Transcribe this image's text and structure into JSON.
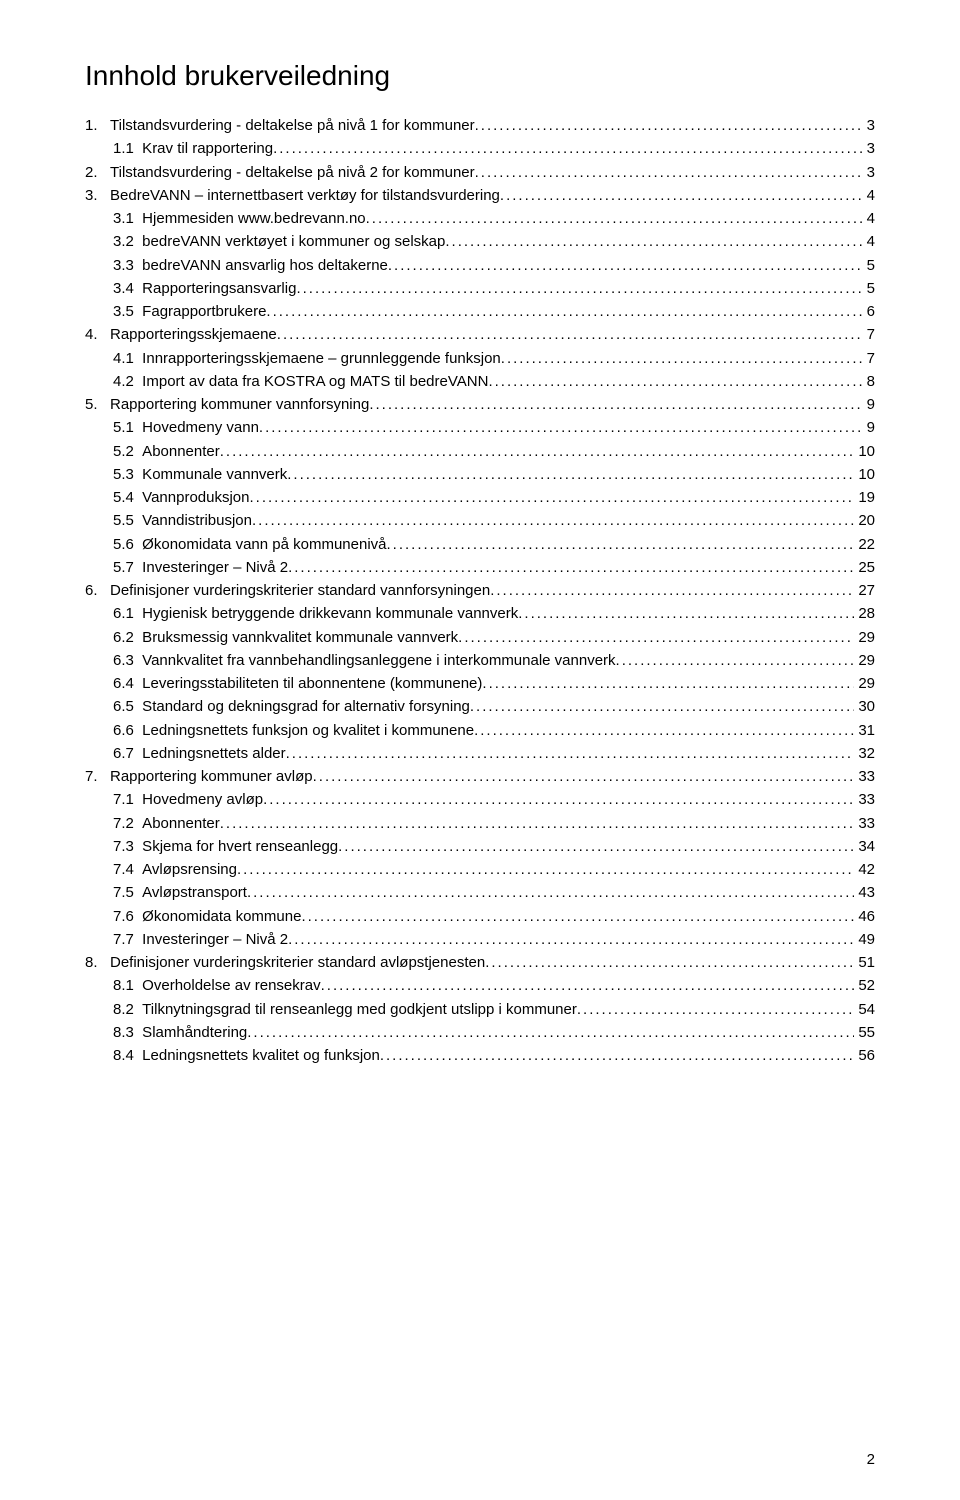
{
  "title": "Innhold brukerveiledning",
  "page_number": "2",
  "toc": [
    {
      "lvl": 0,
      "no": "1.",
      "txt": "Tilstandsvurdering - deltakelse på nivå 1 for kommuner",
      "pg": "3"
    },
    {
      "lvl": 1,
      "no": "1.1",
      "txt": "Krav til rapportering",
      "pg": "3"
    },
    {
      "lvl": 0,
      "no": "2.",
      "txt": "Tilstandsvurdering - deltakelse på nivå 2 for kommuner",
      "pg": "3"
    },
    {
      "lvl": 0,
      "no": "3.",
      "txt": "BedreVANN – internettbasert verktøy for tilstandsvurdering",
      "pg": "4"
    },
    {
      "lvl": 1,
      "no": "3.1",
      "txt": "Hjemmesiden www.bedrevann.no",
      "pg": "4"
    },
    {
      "lvl": 1,
      "no": "3.2",
      "txt": "bedreVANN verktøyet i kommuner og selskap",
      "pg": "4"
    },
    {
      "lvl": 1,
      "no": "3.3",
      "txt": "bedreVANN ansvarlig hos deltakerne",
      "pg": "5"
    },
    {
      "lvl": 1,
      "no": "3.4",
      "txt": "Rapporteringsansvarlig",
      "pg": "5"
    },
    {
      "lvl": 1,
      "no": "3.5",
      "txt": "Fagrapportbrukere",
      "pg": "6"
    },
    {
      "lvl": 0,
      "no": "4.",
      "txt": "Rapporteringsskjemaene",
      "pg": "7"
    },
    {
      "lvl": 1,
      "no": "4.1",
      "txt": "Innrapporteringsskjemaene – grunnleggende funksjon",
      "pg": "7"
    },
    {
      "lvl": 1,
      "no": "4.2",
      "txt": "Import av data fra KOSTRA og MATS til bedreVANN",
      "pg": "8"
    },
    {
      "lvl": 0,
      "no": "5.",
      "txt": "Rapportering kommuner vannforsyning",
      "pg": "9"
    },
    {
      "lvl": 1,
      "no": "5.1",
      "txt": "Hovedmeny vann",
      "pg": "9"
    },
    {
      "lvl": 1,
      "no": "5.2",
      "txt": "Abonnenter",
      "pg": "10"
    },
    {
      "lvl": 1,
      "no": "5.3",
      "txt": "Kommunale vannverk",
      "pg": "10"
    },
    {
      "lvl": 1,
      "no": "5.4",
      "txt": "Vannproduksjon",
      "pg": "19"
    },
    {
      "lvl": 1,
      "no": "5.5",
      "txt": "Vanndistribusjon",
      "pg": "20"
    },
    {
      "lvl": 1,
      "no": "5.6",
      "txt": "Økonomidata vann på kommunenivå",
      "pg": "22"
    },
    {
      "lvl": 1,
      "no": "5.7",
      "txt": "Investeringer – Nivå 2",
      "pg": "25"
    },
    {
      "lvl": 0,
      "no": "6.",
      "txt": "Definisjoner vurderingskriterier standard vannforsyningen",
      "pg": "27"
    },
    {
      "lvl": 1,
      "no": "6.1",
      "txt": "Hygienisk betryggende drikkevann kommunale vannverk",
      "pg": "28"
    },
    {
      "lvl": 1,
      "no": "6.2",
      "txt": "Bruksmessig vannkvalitet kommunale vannverk",
      "pg": "29"
    },
    {
      "lvl": 1,
      "no": "6.3",
      "txt": "Vannkvalitet fra vannbehandlingsanleggene i interkommunale vannverk",
      "pg": "29"
    },
    {
      "lvl": 1,
      "no": "6.4",
      "txt": "Leveringsstabiliteten til abonnentene (kommunene)",
      "pg": "29"
    },
    {
      "lvl": 1,
      "no": "6.5",
      "txt": "Standard og dekningsgrad for alternativ forsyning",
      "pg": "30"
    },
    {
      "lvl": 1,
      "no": "6.6",
      "txt": "Ledningsnettets funksjon og kvalitet i kommunene",
      "pg": "31"
    },
    {
      "lvl": 1,
      "no": "6.7",
      "txt": "Ledningsnettets alder",
      "pg": "32"
    },
    {
      "lvl": 0,
      "no": "7.",
      "txt": "Rapportering kommuner avløp",
      "pg": "33"
    },
    {
      "lvl": 1,
      "no": "7.1",
      "txt": "Hovedmeny avløp",
      "pg": "33"
    },
    {
      "lvl": 1,
      "no": "7.2",
      "txt": "Abonnenter",
      "pg": "33"
    },
    {
      "lvl": 1,
      "no": "7.3",
      "txt": "Skjema for hvert renseanlegg",
      "pg": "34"
    },
    {
      "lvl": 1,
      "no": "7.4",
      "txt": "Avløpsrensing",
      "pg": "42"
    },
    {
      "lvl": 1,
      "no": "7.5",
      "txt": "Avløpstransport",
      "pg": "43"
    },
    {
      "lvl": 1,
      "no": "7.6",
      "txt": "Økonomidata kommune",
      "pg": "46"
    },
    {
      "lvl": 1,
      "no": "7.7",
      "txt": "Investeringer – Nivå 2",
      "pg": "49"
    },
    {
      "lvl": 0,
      "no": "8.",
      "txt": "Definisjoner vurderingskriterier standard avløpstjenesten",
      "pg": "51"
    },
    {
      "lvl": 1,
      "no": "8.1",
      "txt": "Overholdelse av rensekrav",
      "pg": "52"
    },
    {
      "lvl": 1,
      "no": "8.2",
      "txt": "Tilknytningsgrad til renseanlegg med godkjent utslipp i kommuner",
      "pg": "54"
    },
    {
      "lvl": 1,
      "no": "8.3",
      "txt": "Slamhåndtering",
      "pg": "55"
    },
    {
      "lvl": 1,
      "no": "8.4",
      "txt": "Ledningsnettets kvalitet og funksjon",
      "pg": "56"
    }
  ]
}
